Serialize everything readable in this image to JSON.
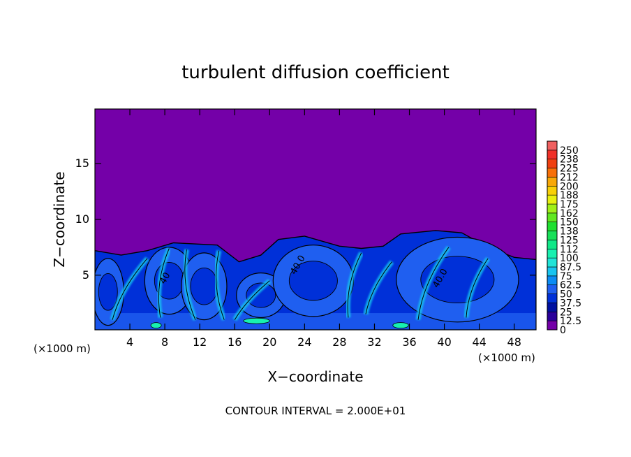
{
  "chart_data": {
    "type": "heatmap",
    "title": "turbulent diffusion coefficient",
    "xlabel": "X−coordinate",
    "ylabel": "Z−coordinate",
    "x_unit": "(×1000 m)",
    "x_unit_right": "(×1000 m)",
    "footer": "CONTOUR INTERVAL = 2.000E+01",
    "xlim": [
      0,
      50.5
    ],
    "ylim": [
      0.1,
      19.9
    ],
    "x_ticks": [
      4,
      8,
      12,
      16,
      20,
      24,
      28,
      32,
      36,
      40,
      44,
      48
    ],
    "y_ticks": [
      5,
      10,
      15
    ],
    "contour_labels": [
      {
        "text": "40.0",
        "x": 23.5,
        "z": 5.8
      },
      {
        "text": "40.0",
        "x": 39.8,
        "z": 4.6
      },
      {
        "text": "40",
        "x": 8.3,
        "z": 4.6
      }
    ],
    "colorbar": {
      "levels": [
        "0",
        "12.5",
        "25",
        "37.5",
        "50",
        "62.5",
        "75",
        "87.5",
        "100",
        "112",
        "125",
        "138",
        "150",
        "162",
        "175",
        "188",
        "200",
        "212",
        "225",
        "238",
        "250"
      ],
      "colors": [
        "#7400a8",
        "#2a009a",
        "#0010a0",
        "#0030d8",
        "#1f5ff0",
        "#0c8cf4",
        "#18c4f0",
        "#20e4d8",
        "#18f0b0",
        "#10e888",
        "#18e058",
        "#20e030",
        "#60e820",
        "#a0f018",
        "#e8f010",
        "#f8d008",
        "#f8a808",
        "#f87008",
        "#f04010",
        "#f03028",
        "#f06060"
      ]
    },
    "boundary_layer_top": [
      {
        "x": 0.0,
        "z": 7.2
      },
      {
        "x": 3.0,
        "z": 6.8
      },
      {
        "x": 6.0,
        "z": 7.2
      },
      {
        "x": 9.0,
        "z": 7.9
      },
      {
        "x": 14.0,
        "z": 7.7
      },
      {
        "x": 16.5,
        "z": 6.2
      },
      {
        "x": 19.0,
        "z": 6.8
      },
      {
        "x": 21.0,
        "z": 8.2
      },
      {
        "x": 24.0,
        "z": 8.5
      },
      {
        "x": 28.0,
        "z": 7.6
      },
      {
        "x": 30.5,
        "z": 7.4
      },
      {
        "x": 33.0,
        "z": 7.6
      },
      {
        "x": 35.0,
        "z": 8.7
      },
      {
        "x": 39.0,
        "z": 9.0
      },
      {
        "x": 42.0,
        "z": 8.8
      },
      {
        "x": 45.0,
        "z": 7.5
      },
      {
        "x": 48.0,
        "z": 6.6
      },
      {
        "x": 50.5,
        "z": 6.4
      }
    ],
    "eddies": [
      {
        "x": 1.5,
        "z": 3.5,
        "rx": 1.8,
        "rz": 3.0
      },
      {
        "x": 8.5,
        "z": 4.5,
        "rx": 2.8,
        "rz": 3.0
      },
      {
        "x": 12.5,
        "z": 4.0,
        "rx": 2.6,
        "rz": 3.0
      },
      {
        "x": 19.0,
        "z": 3.2,
        "rx": 2.8,
        "rz": 2.0
      },
      {
        "x": 25.0,
        "z": 4.5,
        "rx": 4.6,
        "rz": 3.2
      },
      {
        "x": 41.5,
        "z": 4.6,
        "rx": 7.0,
        "rz": 3.8
      }
    ],
    "strands": [
      {
        "x0": 2.0,
        "z0": 1.0,
        "x1": 6.0,
        "z1": 6.5
      },
      {
        "x0": 7.5,
        "z0": 1.2,
        "x1": 8.5,
        "z1": 7.4
      },
      {
        "x0": 11.5,
        "z0": 1.0,
        "x1": 10.5,
        "z1": 7.3
      },
      {
        "x0": 14.8,
        "z0": 1.0,
        "x1": 14.2,
        "z1": 7.2
      },
      {
        "x0": 16.0,
        "z0": 1.0,
        "x1": 20.0,
        "z1": 4.5
      },
      {
        "x0": 29.0,
        "z0": 1.2,
        "x1": 30.5,
        "z1": 7.0
      },
      {
        "x0": 31.0,
        "z0": 1.5,
        "x1": 34.0,
        "z1": 6.2
      },
      {
        "x0": 37.0,
        "z0": 1.0,
        "x1": 40.5,
        "z1": 7.5
      },
      {
        "x0": 42.5,
        "z0": 1.2,
        "x1": 45.0,
        "z1": 6.5
      }
    ],
    "highlights": [
      {
        "x": 18.5,
        "z": 0.9,
        "w": 3.0
      },
      {
        "x": 35.0,
        "z": 0.5,
        "w": 1.8
      },
      {
        "x": 7.0,
        "z": 0.5,
        "w": 1.2
      }
    ],
    "grid": false,
    "legend_position": "right"
  }
}
